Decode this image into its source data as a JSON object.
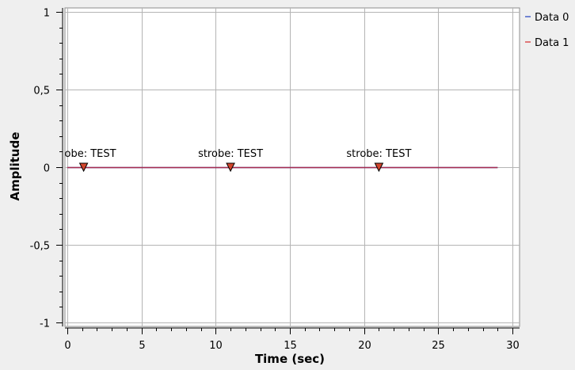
{
  "window": {
    "background": "#efefef"
  },
  "chart_data": {
    "type": "line",
    "title": "",
    "xlabel": "Time (sec)",
    "ylabel": "Amplitude",
    "xlim": [
      0,
      30
    ],
    "ylim": [
      -1,
      1
    ],
    "x_ticks": [
      0,
      5,
      10,
      15,
      20,
      25,
      30
    ],
    "y_ticks": [
      1,
      0.5,
      0,
      -0.5,
      -1
    ],
    "y_tick_labels": [
      "1",
      "0,5",
      "0",
      "-0,5",
      "-1"
    ],
    "grid": true,
    "legend_position": "right",
    "series": [
      {
        "name": "Data 0",
        "color": "#1f3fbf",
        "x": [
          0,
          29
        ],
        "y": [
          0,
          0
        ]
      },
      {
        "name": "Data 1",
        "color": "#d62728",
        "x": [
          0,
          29
        ],
        "y": [
          0,
          0
        ]
      }
    ],
    "tags": [
      {
        "x": 1.1,
        "y": 0,
        "label": "strobe: TEST"
      },
      {
        "x": 11.0,
        "y": 0,
        "label": "strobe: TEST"
      },
      {
        "x": 21.0,
        "y": 0,
        "label": "strobe: TEST"
      }
    ]
  }
}
